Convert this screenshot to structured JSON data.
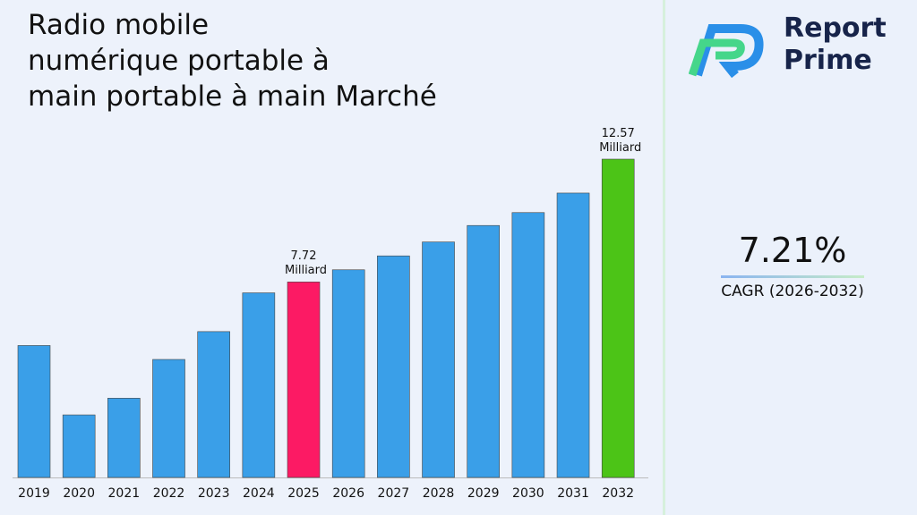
{
  "chart_data": {
    "type": "bar",
    "title": "Radio mobile\nnumérique portable à\nmain portable à main Marché",
    "categories": [
      "2019",
      "2020",
      "2021",
      "2022",
      "2023",
      "2024",
      "2025",
      "2026",
      "2027",
      "2028",
      "2029",
      "2030",
      "2031",
      "2032"
    ],
    "values": [
      5.21,
      2.47,
      3.13,
      4.66,
      5.76,
      7.29,
      7.72,
      8.2,
      8.75,
      9.3,
      9.95,
      10.46,
      11.23,
      12.57
    ],
    "value_labels": [
      null,
      null,
      null,
      null,
      null,
      null,
      "7.72 Milliard",
      null,
      null,
      null,
      null,
      null,
      null,
      "12.57 Milliard"
    ],
    "colors": [
      "#3a9fe8",
      "#3a9fe8",
      "#3a9fe8",
      "#3a9fe8",
      "#3a9fe8",
      "#3a9fe8",
      "#fc1a64",
      "#3a9fe8",
      "#3a9fe8",
      "#3a9fe8",
      "#3a9fe8",
      "#3a9fe8",
      "#3a9fe8",
      "#4cc417"
    ]
  },
  "sidebar": {
    "brand": "Report\nPrime",
    "cagr": "7.21%",
    "cagr_label": "CAGR (2026-2032)"
  }
}
